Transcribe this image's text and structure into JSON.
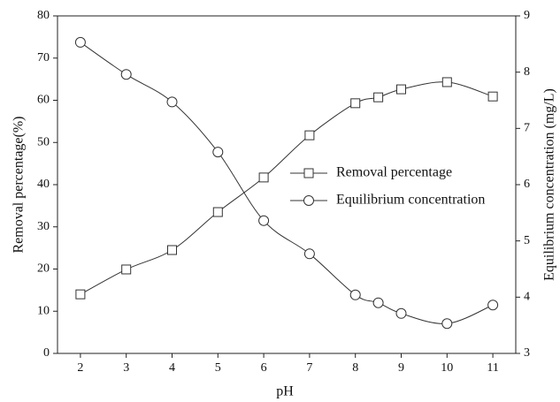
{
  "chart_data": {
    "type": "line",
    "x_label": "pH",
    "y_label": "Removal percentage(%)",
    "y2_label": "Equilibrium concentration (mg/L)",
    "x": [
      2,
      3,
      4,
      5,
      6,
      7,
      8,
      8.5,
      9,
      10,
      11
    ],
    "xlim": [
      1.5,
      11.5
    ],
    "xticks": [
      2,
      3,
      4,
      5,
      6,
      7,
      8,
      9,
      10,
      11
    ],
    "ylim": [
      0,
      80
    ],
    "yticks": [
      0,
      10,
      20,
      30,
      40,
      50,
      60,
      70,
      80
    ],
    "y2lim": [
      3,
      9
    ],
    "y2ticks": [
      3,
      4,
      5,
      6,
      7,
      8,
      9
    ],
    "series": [
      {
        "name": "Removal percentage",
        "marker": "square",
        "color": "#333333",
        "values": [
          14.0,
          19.9,
          24.5,
          33.5,
          41.7,
          51.7,
          59.3,
          60.7,
          62.6,
          64.3,
          60.9
        ]
      },
      {
        "name": "Equilibrium concentration",
        "marker": "circle",
        "color": "#333333",
        "axis": "y2",
        "values": [
          8.53,
          7.96,
          7.47,
          6.58,
          5.36,
          4.77,
          4.04,
          3.9,
          3.71,
          3.53,
          3.86
        ]
      }
    ]
  }
}
